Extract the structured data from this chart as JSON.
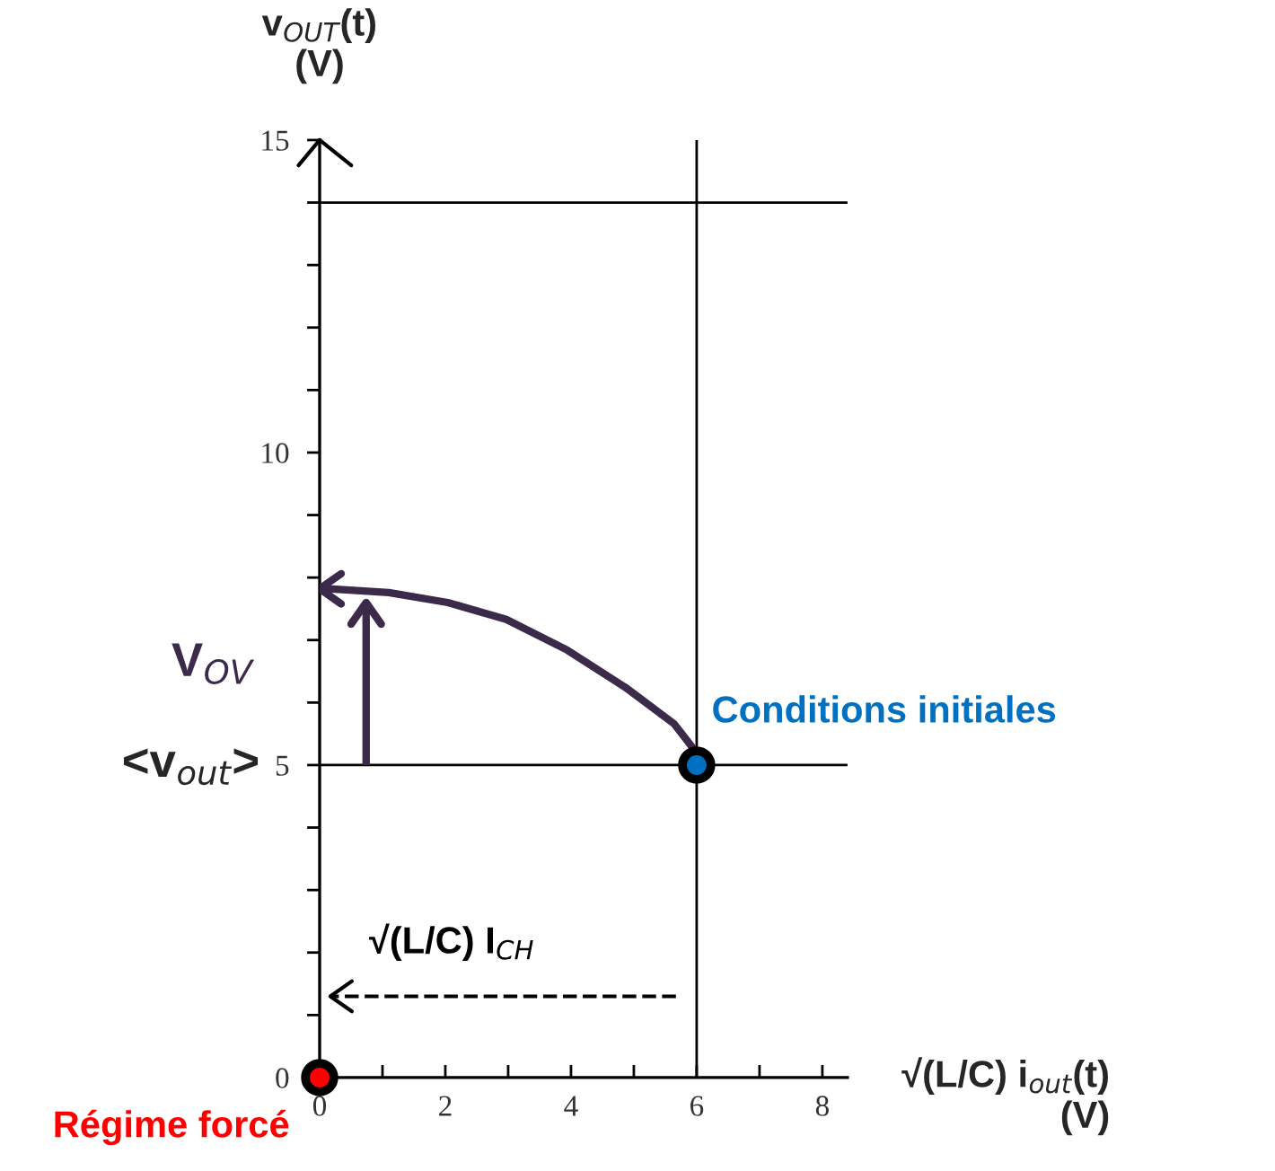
{
  "chart_data": {
    "type": "line",
    "ylabel": "v$_{OUT}$(t)\n(V)",
    "xlabel": "√(L/C) i$_{out}$(t)\n(V)",
    "xlim": [
      0,
      8.4
    ],
    "ylim": [
      0,
      15
    ],
    "xticks": [
      0,
      {
        "value": 1,
        "label": null
      },
      2,
      {
        "value": 3,
        "label": null
      },
      4,
      {
        "value": 5,
        "label": null
      },
      6,
      {
        "value": 7,
        "label": null
      },
      8
    ],
    "yticks": [
      0,
      {
        "value": 1,
        "label": null
      },
      {
        "value": 2,
        "label": null
      },
      {
        "value": 3,
        "label": null
      },
      {
        "value": 4,
        "label": null
      },
      5,
      {
        "value": 6,
        "label": null
      },
      {
        "value": 7,
        "label": null
      },
      {
        "value": 8,
        "label": null
      },
      {
        "value": 9,
        "label": null
      },
      10,
      {
        "value": 11,
        "label": null
      },
      {
        "value": 12,
        "label": null
      },
      {
        "value": 13,
        "label": null
      },
      {
        "value": 14,
        "label": null
      },
      15
    ],
    "grid": false,
    "legend": false,
    "annotations": [
      {
        "text": "V$_{OV}$",
        "x": 0.74,
        "y": 6.3
      },
      {
        "text": "√(L/C) I$_{CH}$",
        "x": 2.9,
        "y": 1.3
      }
    ],
    "ref_lines": [
      {
        "axis": "y",
        "value": 14,
        "color": "#000000"
      },
      {
        "axis": "x",
        "value": 6,
        "color": "#000000"
      },
      {
        "axis": "y",
        "value": 5,
        "label": "<v$_{out}$>",
        "color": "#000000"
      }
    ],
    "series": [
      {
        "color": "#3b2a4a",
        "x": [
          6,
          5.95,
          5.64,
          4.87,
          3.94,
          2.97,
          2.04,
          1.1,
          0.14,
          0
        ],
        "values": [
          5,
          5.26,
          5.66,
          6.24,
          6.84,
          7.33,
          7.6,
          7.76,
          7.82,
          7.82
        ]
      },
      {
        "color": "#3b2a4a",
        "x": [
          0.74,
          0.74
        ],
        "values": [
          5,
          7.6
        ]
      },
      {
        "color": "#000000",
        "line_style": "dashed",
        "x": [
          5.67,
          0.17
        ],
        "values": [
          1.3,
          1.3
        ]
      },
      {
        "type": "scatter",
        "marker": "circle",
        "name": "Régime forcé",
        "color": "#ff0000",
        "x": [
          0
        ],
        "values": [
          0
        ]
      },
      {
        "type": "scatter",
        "marker": "circle",
        "name": "Conditions initiales",
        "color": "#0070c0",
        "x": [
          6
        ],
        "values": [
          5
        ]
      }
    ]
  }
}
